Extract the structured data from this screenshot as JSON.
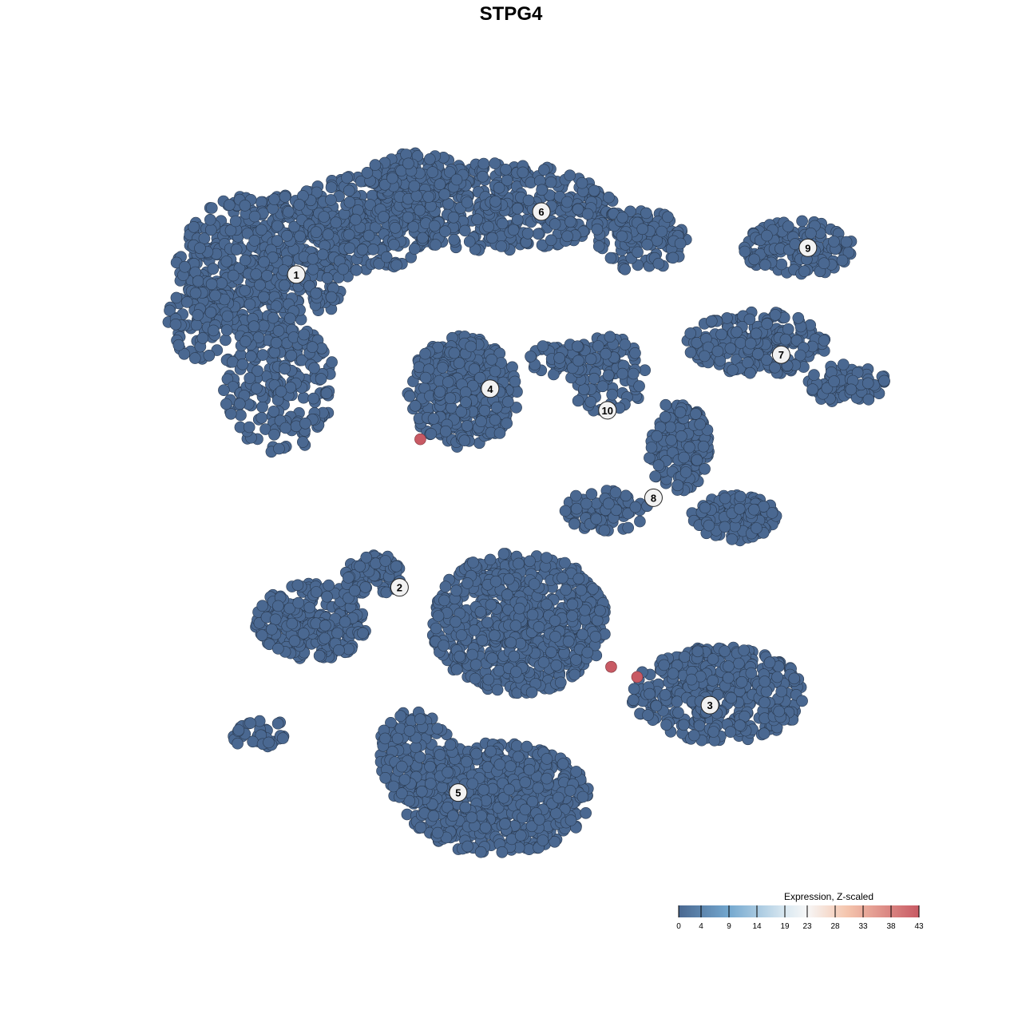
{
  "chart_data": {
    "type": "scatter",
    "title": "STPG4",
    "xlabel": "",
    "ylabel": "",
    "xlim": [
      -50,
      50
    ],
    "ylim": [
      -50,
      50
    ],
    "grid": false,
    "axes_visible": false,
    "colors": {
      "low": "#4a6891",
      "high": "#c85a64",
      "point_stroke": "#2a3a50"
    },
    "clusters": [
      {
        "label": "1",
        "center": [
          -31.6,
          32.4
        ],
        "blobs": [
          [
            -36.0,
            33.9,
            11.8,
            9.9,
            520
          ],
          [
            -23.1,
            39.4,
            10.8,
            6.6,
            300
          ],
          [
            -33.9,
            17.3,
            7.5,
            9.9,
            220
          ],
          [
            -44.6,
            26.2,
            4.3,
            5.5,
            80
          ]
        ]
      },
      {
        "label": "2",
        "center": [
          -17.7,
          -10.9
        ],
        "blobs": [
          [
            -29.6,
            -15.8,
            7.5,
            5.5,
            260
          ],
          [
            -21.0,
            -9.2,
            4.3,
            2.8,
            80
          ],
          [
            -36.0,
            -31.3,
            4.3,
            2.2,
            35
          ]
        ]
      },
      {
        "label": "3",
        "center": [
          24.1,
          -27.2
        ],
        "blobs": [
          [
            25.3,
            -25.7,
            11.8,
            6.6,
            420
          ]
        ]
      },
      {
        "label": "4",
        "center": [
          -5.5,
          16.6
        ],
        "blobs": [
          [
            -9.1,
            16.2,
            7.5,
            7.7,
            380
          ]
        ]
      },
      {
        "label": "5",
        "center": [
          -9.8,
          -39.3
        ],
        "blobs": [
          [
            -1.6,
            -15.8,
            11.8,
            9.9,
            700
          ],
          [
            -4.8,
            -40.1,
            12.9,
            7.7,
            620
          ],
          [
            -15.6,
            -34.6,
            5.4,
            6.6,
            160
          ]
        ]
      },
      {
        "label": "6",
        "center": [
          1.4,
          41.1
        ],
        "blobs": [
          [
            -4.8,
            41.7,
            16.1,
            6.1,
            420
          ],
          [
            14.5,
            37.2,
            6.5,
            4.4,
            130
          ],
          [
            -15.6,
            46.1,
            6.5,
            3.3,
            100
          ]
        ]
      },
      {
        "label": "7",
        "center": [
          33.7,
          21.3
        ],
        "blobs": [
          [
            30.6,
            22.9,
            9.7,
            4.4,
            210
          ],
          [
            42.5,
            17.3,
            5.4,
            2.8,
            80
          ]
        ]
      },
      {
        "label": "8",
        "center": [
          16.5,
          1.5
        ],
        "blobs": [
          [
            19.9,
            8.5,
            4.3,
            6.6,
            150
          ],
          [
            27.4,
            -1.4,
            5.9,
            3.3,
            160
          ],
          [
            10.2,
            -0.3,
            6.5,
            2.8,
            80
          ]
        ]
      },
      {
        "label": "9",
        "center": [
          37.3,
          36.1
        ],
        "blobs": [
          [
            36.0,
            36.1,
            7.5,
            3.9,
            160
          ]
        ]
      },
      {
        "label": "10",
        "center": [
          10.3,
          13.6
        ],
        "blobs": [
          [
            10.2,
            18.5,
            5.4,
            5.5,
            100
          ],
          [
            3.8,
            20.7,
            4.3,
            2.2,
            50
          ]
        ]
      }
    ],
    "baseline_expression": 0,
    "highlighted_points": [
      {
        "x": -14.9,
        "y": 9.6,
        "value": 43
      },
      {
        "x": 10.8,
        "y": -21.9,
        "value": 43
      },
      {
        "x": 14.3,
        "y": -23.3,
        "value": 43
      }
    ],
    "legend": {
      "title": "Expression, Z-scaled",
      "placement": "bottom-right",
      "range": [
        0,
        43
      ],
      "ticks": [
        "0",
        "4",
        "9",
        "14",
        "19",
        "23",
        "28",
        "33",
        "38",
        "43"
      ],
      "gradient_stops": [
        {
          "value": 0,
          "color": "#4a6891"
        },
        {
          "value": 9,
          "color": "#74a8cf"
        },
        {
          "value": 19,
          "color": "#d9e8f1"
        },
        {
          "value": 23,
          "color": "#f7f7f7"
        },
        {
          "value": 30,
          "color": "#f5c6ae"
        },
        {
          "value": 43,
          "color": "#c85a64"
        }
      ]
    }
  }
}
